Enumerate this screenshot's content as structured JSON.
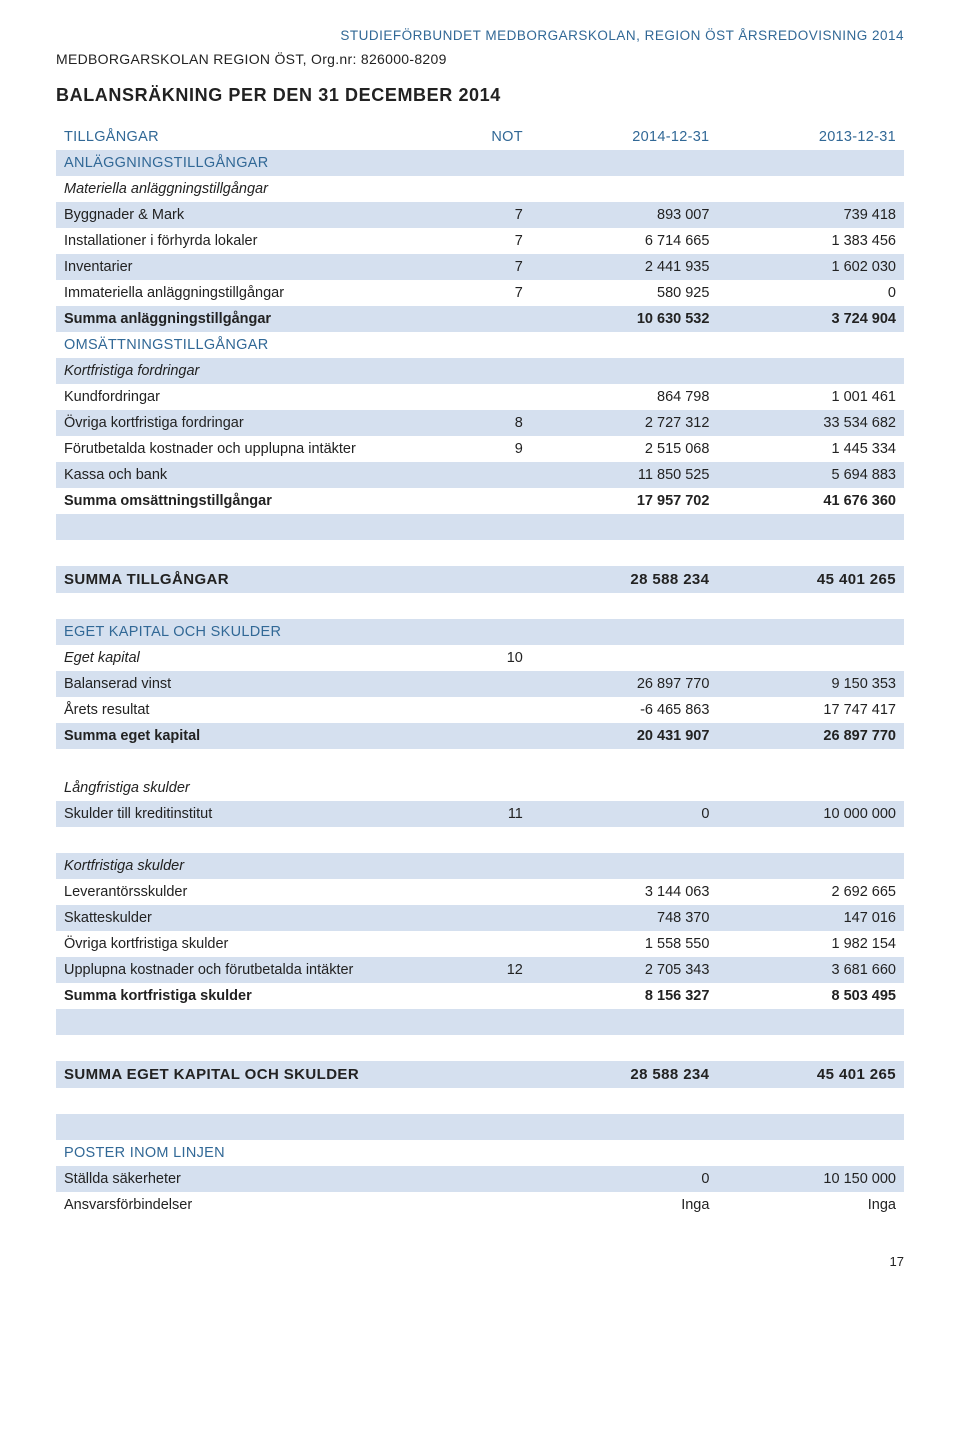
{
  "header": {
    "top_right": "STUDIEFÖRBUNDET MEDBORGARSKOLAN, REGION ÖST ÅRSREDOVISNING 2014",
    "org_line": "MEDBORGARSKOLAN REGION ÖST, Org.nr: 826000-8209",
    "title": "BALANSRÄKNING PER DEN 31 DECEMBER  2014"
  },
  "columns": {
    "label_tillgangar": "TILLGÅNGAR",
    "not": "NOT",
    "y1": "2014-12-31",
    "y2": "2013-12-31"
  },
  "rows": [
    {
      "type": "head",
      "label_key": "columns.label_tillgangar",
      "not_key": "columns.not",
      "y1_key": "columns.y1",
      "y2_key": "columns.y2"
    },
    {
      "type": "section",
      "band": true,
      "label": "ANLÄGGNINGSTILLGÅNGAR"
    },
    {
      "type": "data",
      "italic": true,
      "label": "Materiella anläggningstillgångar"
    },
    {
      "type": "data",
      "band": true,
      "label": "Byggnader & Mark",
      "not": "7",
      "y1": "893 007",
      "y2": "739 418"
    },
    {
      "type": "data",
      "label": "Installationer i förhyrda lokaler",
      "not": "7",
      "y1": "6 714 665",
      "y2": "1 383 456"
    },
    {
      "type": "data",
      "band": true,
      "label": "Inventarier",
      "not": "7",
      "y1": "2 441 935",
      "y2": "1 602 030"
    },
    {
      "type": "data",
      "label": "Immateriella anläggningstillgångar",
      "not": "7",
      "y1": "580 925",
      "y2": "0"
    },
    {
      "type": "data",
      "band": true,
      "bold": true,
      "label": "Summa anläggningstillgångar",
      "y1": "10 630 532",
      "y2": "3 724 904"
    },
    {
      "type": "section",
      "label": "OMSÄTTNINGSTILLGÅNGAR"
    },
    {
      "type": "data",
      "band": true,
      "italic": true,
      "label": "Kortfristiga fordringar"
    },
    {
      "type": "data",
      "label": "Kundfordringar",
      "y1": "864 798",
      "y2": "1 001 461"
    },
    {
      "type": "data",
      "band": true,
      "label": "Övriga kortfristiga fordringar",
      "not": "8",
      "y1": "2 727 312",
      "y2": "33 534 682"
    },
    {
      "type": "data",
      "label": "Förutbetalda kostnader och upplupna intäkter",
      "not": "9",
      "y1": "2 515 068",
      "y2": "1 445 334"
    },
    {
      "type": "data",
      "band": true,
      "label": "Kassa och bank",
      "y1": "11 850 525",
      "y2": "5 694 883"
    },
    {
      "type": "data",
      "bold": true,
      "label": "Summa omsättningstillgångar",
      "y1": "17 957 702",
      "y2": "41 676 360"
    },
    {
      "type": "spacer",
      "band": true
    },
    {
      "type": "spacer"
    },
    {
      "type": "summa",
      "band": true,
      "label": "SUMMA TILLGÅNGAR",
      "y1": "28 588 234",
      "y2": "45 401 265"
    },
    {
      "type": "spacer"
    },
    {
      "type": "section",
      "band": true,
      "label": "EGET KAPITAL OCH SKULDER"
    },
    {
      "type": "data",
      "italic": true,
      "label": "Eget kapital",
      "not": "10"
    },
    {
      "type": "data",
      "band": true,
      "label": "Balanserad vinst",
      "y1": "26 897 770",
      "y2": "9 150 353"
    },
    {
      "type": "data",
      "label": "Årets resultat",
      "y1": "-6 465 863",
      "y2": "17 747 417"
    },
    {
      "type": "data",
      "band": true,
      "bold": true,
      "label": "Summa eget kapital",
      "y1": "20 431 907",
      "y2": "26 897 770"
    },
    {
      "type": "spacer"
    },
    {
      "type": "data",
      "italic": true,
      "label": "Långfristiga skulder"
    },
    {
      "type": "data",
      "band": true,
      "label": "Skulder till kreditinstitut",
      "not": "11",
      "y1": "0",
      "y2": "10 000 000"
    },
    {
      "type": "spacer"
    },
    {
      "type": "data",
      "band": true,
      "italic": true,
      "label": "Kortfristiga skulder"
    },
    {
      "type": "data",
      "label": "Leverantörsskulder",
      "y1": "3 144 063",
      "y2": "2 692 665"
    },
    {
      "type": "data",
      "band": true,
      "label": "Skatteskulder",
      "y1": "748 370",
      "y2": "147 016"
    },
    {
      "type": "data",
      "label": "Övriga kortfristiga skulder",
      "y1": "1 558 550",
      "y2": "1 982 154"
    },
    {
      "type": "data",
      "band": true,
      "label": "Upplupna kostnader och förutbetalda intäkter",
      "not": "12",
      "y1": "2 705 343",
      "y2": "3 681 660"
    },
    {
      "type": "data",
      "bold": true,
      "label": "Summa kortfristiga skulder",
      "y1": "8 156 327",
      "y2": "8 503 495"
    },
    {
      "type": "spacer",
      "band": true
    },
    {
      "type": "spacer"
    },
    {
      "type": "summa",
      "band": true,
      "label": "SUMMA EGET KAPITAL OCH SKULDER",
      "y1": "28 588 234",
      "y2": "45 401 265"
    },
    {
      "type": "spacer"
    },
    {
      "type": "spacer",
      "band": true
    },
    {
      "type": "section",
      "label": "POSTER INOM LINJEN"
    },
    {
      "type": "data",
      "band": true,
      "label": "Ställda säkerheter",
      "y1": "0",
      "y2": "10 150 000"
    },
    {
      "type": "data",
      "label": "Ansvarsförbindelser",
      "y1": "Inga",
      "y2": "Inga"
    }
  ],
  "page_number": "17",
  "style": {
    "band_color": "#d5e0ef",
    "section_color": "#316896",
    "text_color": "#222222",
    "background": "#ffffff",
    "font_size_body": 14.5,
    "font_size_title": 18
  }
}
